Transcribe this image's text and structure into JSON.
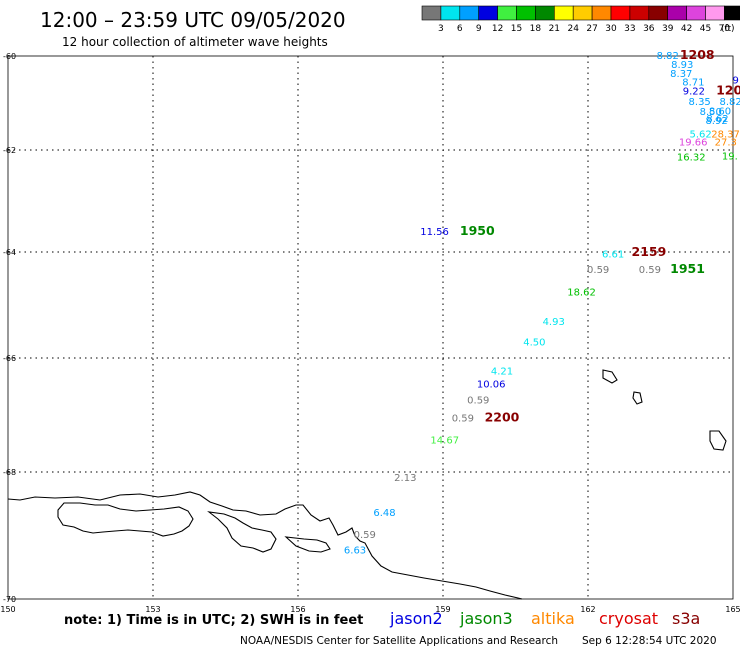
{
  "header": {
    "title": "12:00 – 23:59 UTC 09/05/2020",
    "subtitle": "12 hour collection of altimeter wave heights"
  },
  "colorbar": {
    "unit_label": "(ft)",
    "bins": [
      {
        "label": "3",
        "color": "#777777"
      },
      {
        "label": "6",
        "color": "#00e5ee"
      },
      {
        "label": "9",
        "color": "#00a0ff"
      },
      {
        "label": "12",
        "color": "#0000e0"
      },
      {
        "label": "15",
        "color": "#40f040"
      },
      {
        "label": "18",
        "color": "#00c000"
      },
      {
        "label": "21",
        "color": "#008800"
      },
      {
        "label": "24",
        "color": "#ffff00"
      },
      {
        "label": "27",
        "color": "#ffcc00"
      },
      {
        "label": "30",
        "color": "#ff8800"
      },
      {
        "label": "33",
        "color": "#ff0000"
      },
      {
        "label": "36",
        "color": "#cc0000"
      },
      {
        "label": "39",
        "color": "#880000"
      },
      {
        "label": "42",
        "color": "#aa00aa"
      },
      {
        "label": "45",
        "color": "#dd44dd"
      },
      {
        "label": "70",
        "color": "#ff99ee"
      },
      {
        "label": "",
        "color": "#000000"
      }
    ]
  },
  "map": {
    "lon_ticks": [
      "150",
      "153",
      "156",
      "159",
      "162",
      "165"
    ],
    "lat_ticks": [
      "-60",
      "-62",
      "-64",
      "-66",
      "-68",
      "-70"
    ],
    "wave_labels": [
      {
        "text": "8.82",
        "lon": 163.42,
        "lat": -60.06,
        "color": "#00a0ff"
      },
      {
        "text": "8.93",
        "lon": 163.72,
        "lat": -60.25,
        "color": "#00a0ff"
      },
      {
        "text": "8.37",
        "lon": 163.7,
        "lat": -60.45,
        "color": "#00a0ff"
      },
      {
        "text": "8.71",
        "lon": 163.95,
        "lat": -60.63,
        "color": "#00a0ff"
      },
      {
        "text": "9.22",
        "lon": 163.96,
        "lat": -60.82,
        "color": "#0000e0"
      },
      {
        "text": "9",
        "lon": 164.99,
        "lat": -60.58,
        "color": "#0000e0"
      },
      {
        "text": "8.35",
        "lon": 164.08,
        "lat": -61.04,
        "color": "#00a0ff"
      },
      {
        "text": "8.82",
        "lon": 164.72,
        "lat": -61.04,
        "color": "#00a0ff"
      },
      {
        "text": "8.50",
        "lon": 164.31,
        "lat": -61.26,
        "color": "#00a0ff"
      },
      {
        "text": "8.60",
        "lon": 164.5,
        "lat": -61.24,
        "color": "#00a0ff"
      },
      {
        "text": "8.92",
        "lon": 164.43,
        "lat": -61.45,
        "color": "#00a0ff"
      },
      {
        "text": "8.62",
        "lon": 164.45,
        "lat": -61.4,
        "color": "#00a0ff"
      },
      {
        "text": "5.62",
        "lon": 164.1,
        "lat": -61.73,
        "color": "#00e5ee"
      },
      {
        "text": "28.37",
        "lon": 164.55,
        "lat": -61.73,
        "color": "#ff8800"
      },
      {
        "text": "19.66",
        "lon": 163.88,
        "lat": -61.9,
        "color": "#dd44dd"
      },
      {
        "text": "27.3",
        "lon": 164.62,
        "lat": -61.9,
        "color": "#ff8800"
      },
      {
        "text": "16.32",
        "lon": 163.84,
        "lat": -62.21,
        "color": "#00c000"
      },
      {
        "text": "19.",
        "lon": 164.77,
        "lat": -62.19,
        "color": "#00c000"
      },
      {
        "text": "11.56",
        "lon": 158.53,
        "lat": -63.67,
        "color": "#0000e0"
      },
      {
        "text": "6.61",
        "lon": 162.29,
        "lat": -64.1,
        "color": "#00e5ee"
      },
      {
        "text": "0.59",
        "lon": 161.98,
        "lat": -64.4,
        "color": "#777777"
      },
      {
        "text": "0.59",
        "lon": 163.05,
        "lat": -64.4,
        "color": "#777777"
      },
      {
        "text": "18.62",
        "lon": 161.57,
        "lat": -64.82,
        "color": "#00c000"
      },
      {
        "text": "4.93",
        "lon": 161.06,
        "lat": -65.38,
        "color": "#00e5ee"
      },
      {
        "text": "4.50",
        "lon": 160.66,
        "lat": -65.76,
        "color": "#00e5ee"
      },
      {
        "text": "4.21",
        "lon": 159.99,
        "lat": -66.29,
        "color": "#00e5ee"
      },
      {
        "text": "10.06",
        "lon": 159.7,
        "lat": -66.52,
        "color": "#0000e0"
      },
      {
        "text": "0.59",
        "lon": 159.5,
        "lat": -66.8,
        "color": "#777777"
      },
      {
        "text": "0.59",
        "lon": 159.18,
        "lat": -67.11,
        "color": "#777777"
      },
      {
        "text": "14.67",
        "lon": 158.74,
        "lat": -67.5,
        "color": "#40f040"
      },
      {
        "text": "2.13",
        "lon": 157.99,
        "lat": -68.14,
        "color": "#777777"
      },
      {
        "text": "6.48",
        "lon": 157.56,
        "lat": -68.69,
        "color": "#00a0ff"
      },
      {
        "text": "0.59",
        "lon": 157.15,
        "lat": -69.04,
        "color": "#777777"
      },
      {
        "text": "6.63",
        "lon": 156.95,
        "lat": -69.28,
        "color": "#00a0ff"
      }
    ],
    "time_labels": [
      {
        "text": "1208",
        "lon": 163.9,
        "lat": -60.06,
        "color": "#880000"
      },
      {
        "text": "120",
        "lon": 164.65,
        "lat": -60.82,
        "color": "#880000"
      },
      {
        "text": "1950",
        "lon": 159.35,
        "lat": -63.67,
        "color": "#008800"
      },
      {
        "text": "2159",
        "lon": 162.9,
        "lat": -64.08,
        "color": "#880000"
      },
      {
        "text": "1951",
        "lon": 163.7,
        "lat": -64.4,
        "color": "#008800"
      },
      {
        "text": "2200",
        "lon": 159.86,
        "lat": -67.11,
        "color": "#880000"
      }
    ]
  },
  "footer": {
    "note": "note: 1) Time is in UTC; 2) SWH is in feet",
    "satellites": [
      {
        "name": "jason2",
        "color": "#0000e0"
      },
      {
        "name": "jason3",
        "color": "#008800"
      },
      {
        "name": "altika",
        "color": "#ff8800"
      },
      {
        "name": "cryosat",
        "color": "#dd0000"
      },
      {
        "name": "s3a",
        "color": "#880000"
      }
    ],
    "credit": "NOAA/NESDIS Center for Satellite Applications and Research",
    "timestamp": "Sep  6 12:28:54 UTC 2020"
  }
}
